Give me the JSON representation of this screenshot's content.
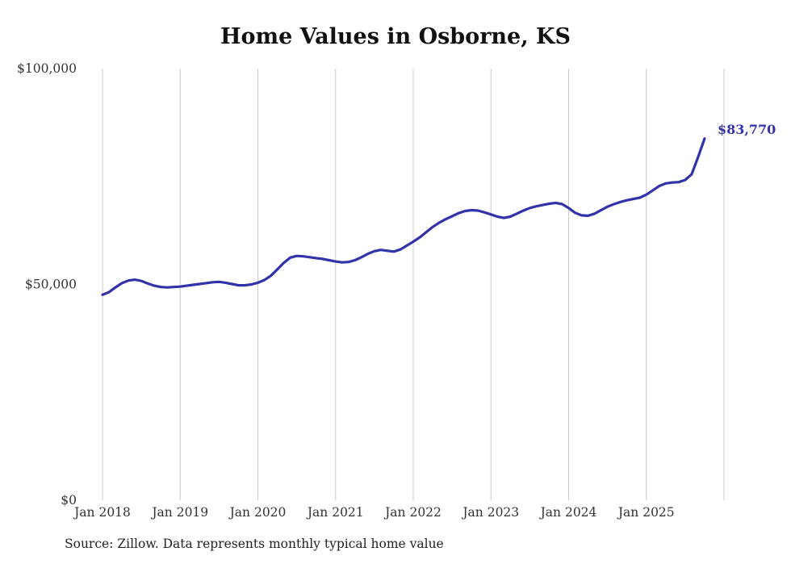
{
  "chart_data": {
    "type": "line",
    "title": "Home Values in Osborne, KS",
    "source": "Source: Zillow. Data represents monthly typical home value",
    "x_interval": "monthly",
    "x_start": "Jan 2018",
    "x_end": "Oct 2025",
    "x_tick_labels": [
      "Jan 2018",
      "Jan 2019",
      "Jan 2020",
      "Jan 2021",
      "Jan 2022",
      "Jan 2023",
      "Jan 2024",
      "Jan 2025"
    ],
    "y_tick_labels": [
      "$0",
      "$50,000",
      "$100,000"
    ],
    "y_ticks": [
      0,
      50000,
      100000
    ],
    "ylim": [
      0,
      100000
    ],
    "grid": "vertical-yearly",
    "legend": "none",
    "end_label": "$83,770",
    "end_value": 83770,
    "line_color": "#3232aa",
    "gridline_color": "#cccccc",
    "tick_label_color": "#333333",
    "values": [
      47600,
      48200,
      49300,
      50300,
      50900,
      51100,
      50800,
      50200,
      49700,
      49400,
      49300,
      49400,
      49500,
      49700,
      49900,
      50100,
      50300,
      50500,
      50600,
      50400,
      50100,
      49800,
      49800,
      50000,
      50400,
      51000,
      52000,
      53500,
      55000,
      56200,
      56600,
      56500,
      56300,
      56100,
      55900,
      55600,
      55300,
      55100,
      55200,
      55600,
      56300,
      57100,
      57700,
      58000,
      57800,
      57600,
      58100,
      59000,
      59900,
      60900,
      62100,
      63300,
      64300,
      65100,
      65800,
      66500,
      67000,
      67200,
      67100,
      66700,
      66200,
      65700,
      65400,
      65700,
      66400,
      67100,
      67700,
      68100,
      68400,
      68700,
      68900,
      68600,
      67700,
      66600,
      66000,
      65900,
      66400,
      67200,
      68000,
      68600,
      69100,
      69500,
      69800,
      70100,
      70800,
      71800,
      72800,
      73400,
      73600,
      73700,
      74200,
      75500,
      79500,
      83770
    ]
  }
}
